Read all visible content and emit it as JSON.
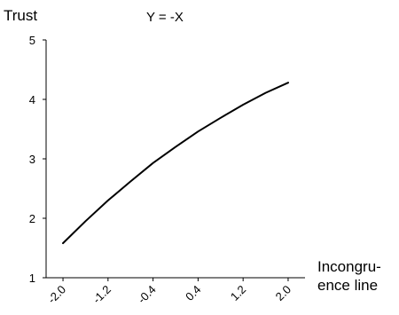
{
  "chart_data": {
    "type": "line",
    "title": "Y = -X",
    "ylabel": "Trust",
    "xlabel_lines": [
      "Incongru-",
      "ence line"
    ],
    "x_ticks": [
      "-2.0",
      "-1.2",
      "-0.4",
      "0.4",
      "1.2",
      "2.0"
    ],
    "y_ticks": [
      "1",
      "2",
      "3",
      "4",
      "5"
    ],
    "xlim": [
      -2.3,
      2.3
    ],
    "ylim": [
      1,
      5
    ],
    "grid": false,
    "series": [
      {
        "color": "#000000",
        "x": [
          -2.0,
          -1.6,
          -1.2,
          -0.8,
          -0.4,
          0.0,
          0.4,
          0.8,
          1.2,
          1.6,
          2.0
        ],
        "y": [
          1.58,
          1.95,
          2.3,
          2.62,
          2.93,
          3.2,
          3.46,
          3.69,
          3.91,
          4.11,
          4.28
        ]
      }
    ]
  }
}
